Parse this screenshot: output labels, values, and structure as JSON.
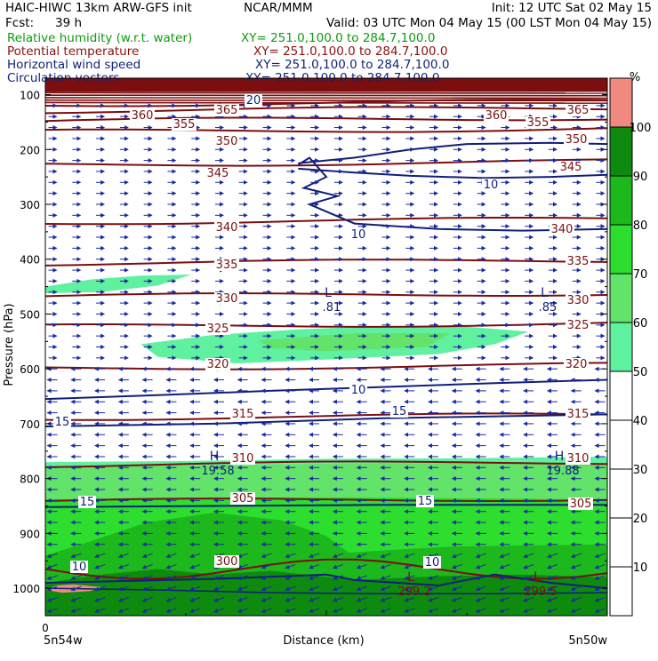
{
  "header": {
    "model": "HAIC-HIWC 13km ARW-GFS init",
    "org": "NCAR/MMM",
    "init": "Init: 12 UTC Sat 02 May 15",
    "fcst_label": "Fcst:",
    "fcst_value": "39 h",
    "valid": "Valid: 03 UTC Mon 04 May 15 (00 LST Mon 04 May 15)"
  },
  "fields": [
    {
      "name": "Relative humidity (w.r.t. water)",
      "xy": "XY= 251.0,100.0 to 284.7,100.0",
      "color": "#119a11"
    },
    {
      "name": "Potential temperature",
      "xy": "XY= 251.0,100.0 to 284.7,100.0",
      "color": "#8b1010"
    },
    {
      "name": "Horizontal wind speed",
      "xy": "XY= 251.0,100.0 to 284.7,100.0",
      "color": "#10237a"
    },
    {
      "name": "Circulation vectors",
      "xy": "XY= 251.0,100.0 to 284.7,100.0",
      "color": "#10237a"
    }
  ],
  "chart_data": {
    "type": "cross-section",
    "ylabel": "Pressure (hPa)",
    "xlabel": "Distance (km)",
    "y_range": [
      1050,
      70
    ],
    "y_ticks": [
      100,
      200,
      300,
      400,
      500,
      600,
      700,
      800,
      900,
      1000
    ],
    "x_tick_label": "0",
    "x_end_labels": [
      "5n54w",
      "5n50w"
    ],
    "theta_contours": [
      {
        "value": 305,
        "labels": [
          "305",
          "305"
        ]
      },
      {
        "value": 310,
        "labels": [
          "310",
          "310"
        ]
      },
      {
        "value": 315,
        "labels": [
          "315",
          "315"
        ]
      },
      {
        "value": 320,
        "labels": [
          "320",
          "320"
        ]
      },
      {
        "value": 325,
        "labels": [
          "325",
          "325"
        ]
      },
      {
        "value": 330,
        "labels": [
          "330",
          "330"
        ]
      },
      {
        "value": 335,
        "labels": [
          "335",
          "335"
        ]
      },
      {
        "value": 340,
        "labels": [
          "340",
          "340"
        ]
      },
      {
        "value": 345,
        "labels": [
          "345",
          "345"
        ]
      },
      {
        "value": 350,
        "labels": [
          "350",
          "350"
        ]
      },
      {
        "value": 355,
        "labels": [
          "355",
          "355"
        ]
      },
      {
        "value": 360,
        "labels": [
          "360",
          "360"
        ]
      },
      {
        "value": 365,
        "labels": [
          "365",
          "365"
        ]
      },
      {
        "value": 300,
        "labels": [
          "300"
        ]
      }
    ],
    "wind_speed_labels": [
      "10",
      "10",
      "10",
      "15",
      "15",
      "15",
      "15",
      "10",
      "10",
      "20"
    ],
    "extrema": [
      {
        "type": "L",
        "value": ".81"
      },
      {
        "type": "L",
        "value": ".85"
      },
      {
        "type": "H",
        "value": "19.58"
      },
      {
        "type": "H",
        "value": "19.88"
      },
      {
        "type": "L",
        "value": "299.2"
      },
      {
        "type": "L",
        "value": "299.5"
      }
    ],
    "rh_colorbar": {
      "unit": "%",
      "ticks": [
        10,
        20,
        30,
        40,
        50,
        60,
        70,
        80,
        90,
        100
      ],
      "bands": [
        {
          "from": 50,
          "to": 60,
          "color": "#5ff0a0"
        },
        {
          "from": 60,
          "to": 70,
          "color": "#63e36a"
        },
        {
          "from": 70,
          "to": 80,
          "color": "#2ede2e"
        },
        {
          "from": 80,
          "to": 90,
          "color": "#1cb81c"
        },
        {
          "from": 90,
          "to": 100,
          "color": "#0e8a0e"
        },
        {
          "from": 100,
          "to": 110,
          "color": "#f08a80"
        }
      ]
    },
    "colors": {
      "theta": "#7b0f0f",
      "wind": "#0f1f78",
      "vector": "#1a2aa0",
      "axis": "#000000"
    }
  }
}
